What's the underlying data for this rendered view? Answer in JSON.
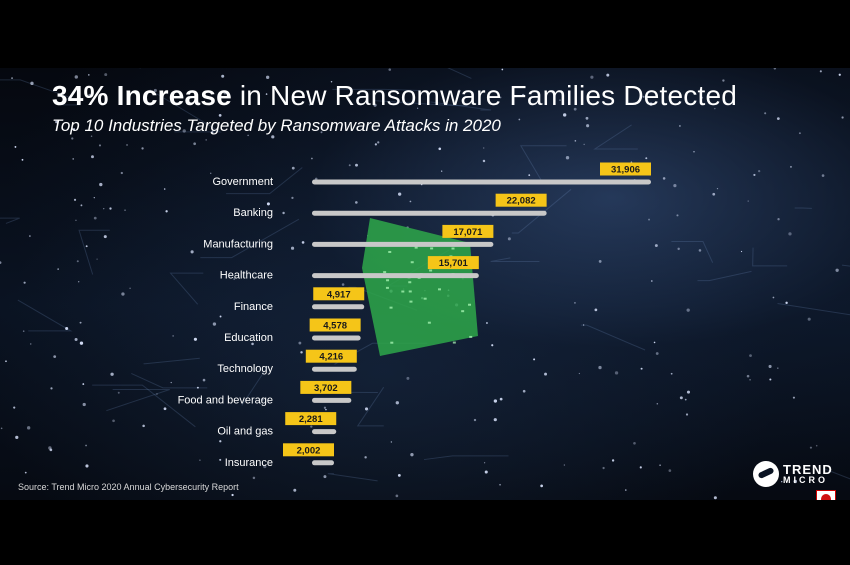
{
  "title": {
    "bold": "34% Increase",
    "rest": " in New Ransomware Families Detected"
  },
  "subtitle": "Top 10 Industries Targeted by Ransomware Attacks in 2020",
  "source": "Source: Trend Micro 2020 Annual Cybersecurity Report",
  "logo": {
    "line1": "TREND",
    "line2": "MICRO"
  },
  "colors": {
    "bar": "#c8c8c8",
    "label_bg": "#f5c518",
    "label_text": "#1a1a1a",
    "category_text": "#ffffff",
    "chip": "#2ea84a"
  },
  "icons": [
    "trend-micro-logo-icon",
    "award-badge-icon"
  ],
  "chart_data": {
    "type": "bar",
    "orientation": "horizontal",
    "title": "Top 10 Industries Targeted by Ransomware Attacks in 2020",
    "categories": [
      "Government",
      "Banking",
      "Manufacturing",
      "Healthcare",
      "Finance",
      "Education",
      "Technology",
      "Food and beverage",
      "Oil and gas",
      "Insurance"
    ],
    "values": [
      31906,
      22082,
      17071,
      15701,
      4917,
      4578,
      4216,
      3702,
      2281,
      2002
    ],
    "value_labels": [
      "31,906",
      "22,082",
      "17,071",
      "15,701",
      "4,917",
      "4,578",
      "4,216",
      "3,702",
      "2,281",
      "2,002"
    ],
    "xlim": [
      0,
      31906
    ],
    "grid": false,
    "legend": "none"
  }
}
